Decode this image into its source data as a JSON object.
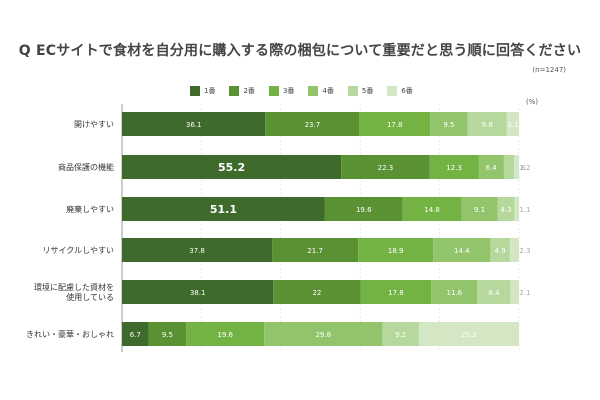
{
  "chart_data": {
    "type": "bar",
    "orientation": "horizontal",
    "stacked": true,
    "title": "Q ECサイトで食材を自分用に購入する際の梱包について重要だと思う順に回答ください",
    "note": "(n=1247)",
    "unit": "(%)",
    "grid": true,
    "legend_position": "top",
    "categories": [
      "開けやすい",
      "商品保護の機能",
      "廃棄しやすい",
      "リサイクルしやすい",
      "環境に配慮した資材を\n使用している",
      "きれい・豪華・おしゃれ"
    ],
    "series": [
      {
        "name": "1番",
        "color": "#3e6b2b",
        "values": [
          36.1,
          55.2,
          51.1,
          37.8,
          38.1,
          6.7
        ]
      },
      {
        "name": "2番",
        "color": "#5a9133",
        "values": [
          23.7,
          22.3,
          19.6,
          21.7,
          22,
          9.5
        ]
      },
      {
        "name": "3番",
        "color": "#73b343",
        "values": [
          17.8,
          12.3,
          14.8,
          18.9,
          17.8,
          19.6
        ]
      },
      {
        "name": "4番",
        "color": "#92c56b",
        "values": [
          9.5,
          6.4,
          9.1,
          14.4,
          11.6,
          29.8
        ]
      },
      {
        "name": "5番",
        "color": "#b6d89c",
        "values": [
          9.8,
          2.6,
          4.3,
          4.9,
          8.4,
          9.2
        ]
      },
      {
        "name": "6番",
        "color": "#d4e7c4",
        "values": [
          3.1,
          1.2,
          1.1,
          2.3,
          2.1,
          25.2
        ]
      }
    ],
    "xlim": [
      0,
      100
    ]
  }
}
